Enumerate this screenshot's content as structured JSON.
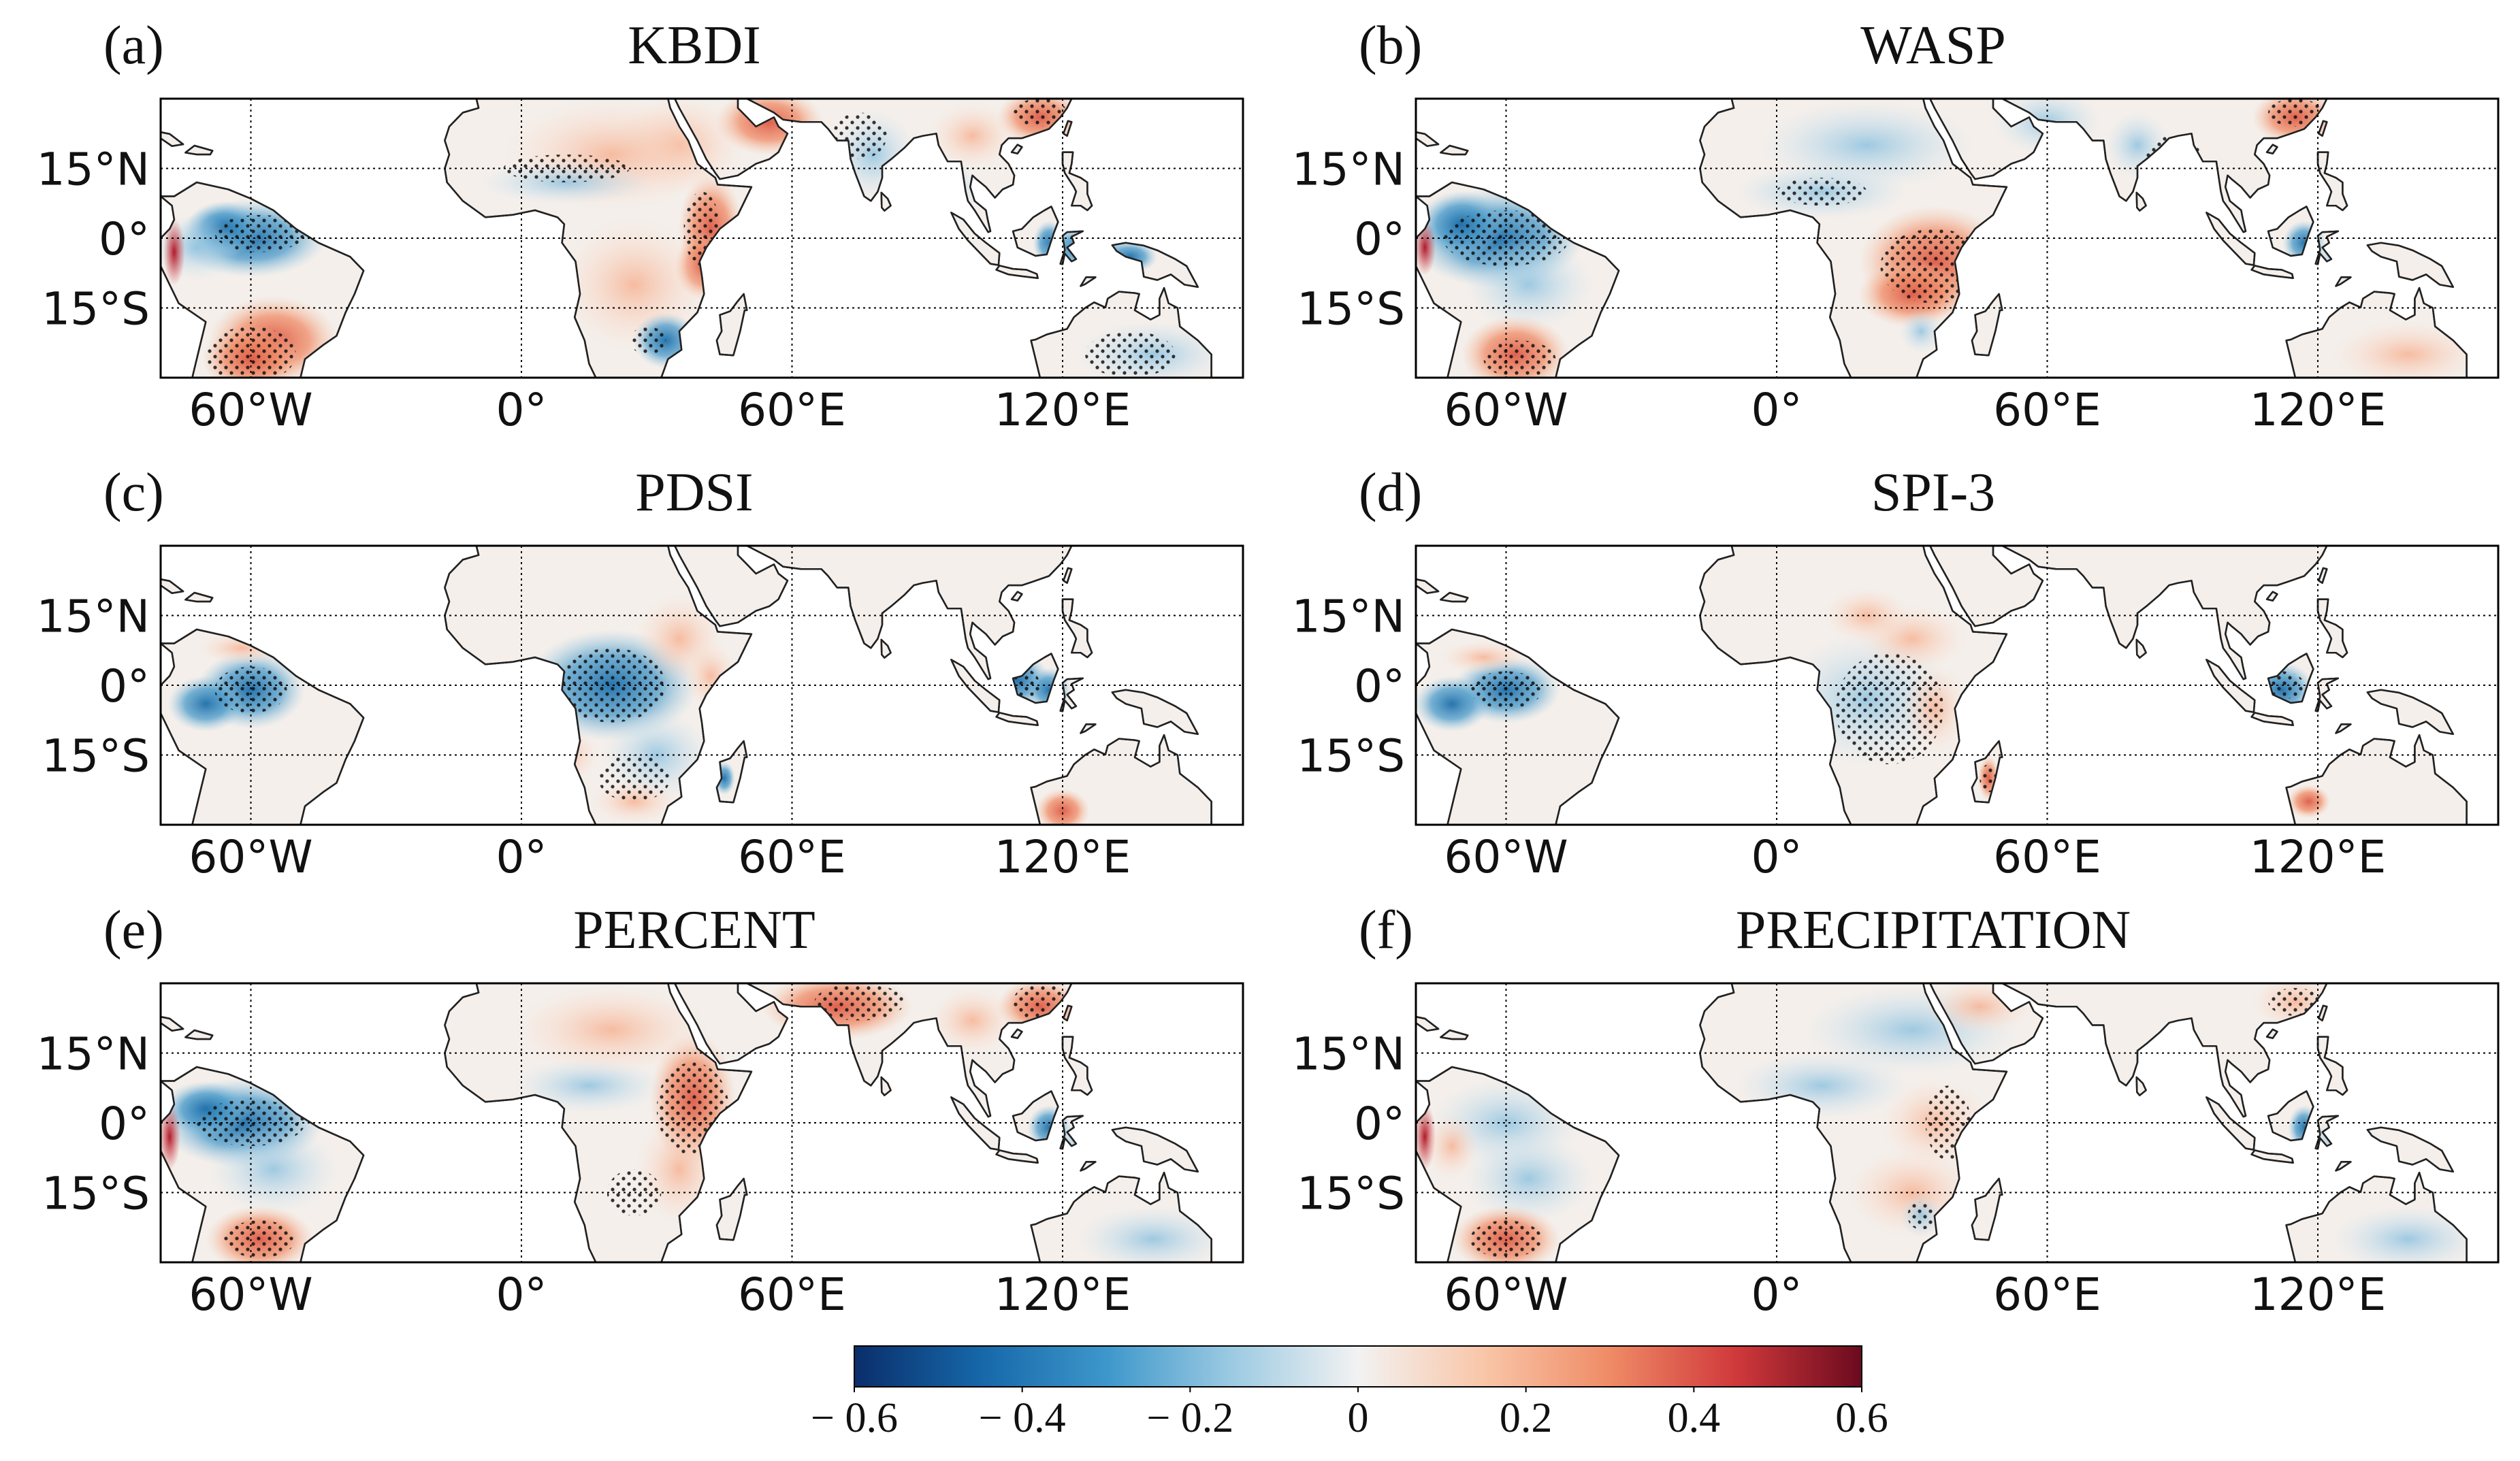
{
  "panels": [
    {
      "letter": "(a)",
      "title": "KBDI",
      "pattern": "kbdi"
    },
    {
      "letter": "(b)",
      "title": "WASP",
      "pattern": "wasp"
    },
    {
      "letter": "(c)",
      "title": "PDSI",
      "pattern": "pdsi"
    },
    {
      "letter": "(d)",
      "title": "SPI-3",
      "pattern": "spi"
    },
    {
      "letter": "(e)",
      "title": "PERCENT",
      "pattern": "percent"
    },
    {
      "letter": "(f)",
      "title": "PRECIPITATION",
      "pattern": "precip"
    }
  ],
  "axes": {
    "lon_range": [
      -80,
      160
    ],
    "lat_range": [
      -30,
      30
    ],
    "lat_ticks": [
      {
        "value": 15,
        "label": "15°N"
      },
      {
        "value": 0,
        "label": "0°"
      },
      {
        "value": -15,
        "label": "15°S"
      }
    ],
    "lon_ticks": [
      {
        "value": -60,
        "label": "60°W"
      },
      {
        "value": 0,
        "label": "0°"
      },
      {
        "value": 60,
        "label": "60°E"
      },
      {
        "value": 120,
        "label": "120°E"
      }
    ]
  },
  "colorbar": {
    "min": -0.6,
    "max": 0.6,
    "ticks": [
      {
        "value": -0.6,
        "label": "− 0.6"
      },
      {
        "value": -0.4,
        "label": "− 0.4"
      },
      {
        "value": -0.2,
        "label": "− 0.2"
      },
      {
        "value": 0,
        "label": "0"
      },
      {
        "value": 0.2,
        "label": "0.2"
      },
      {
        "value": 0.4,
        "label": "0.4"
      },
      {
        "value": 0.6,
        "label": "0.6"
      }
    ],
    "colors": [
      "#0a2e6b",
      "#1667a8",
      "#3d97cb",
      "#9ccae2",
      "#f2f2f2",
      "#f9c6a8",
      "#ef8b66",
      "#d0393b",
      "#6b0a1e"
    ]
  }
}
